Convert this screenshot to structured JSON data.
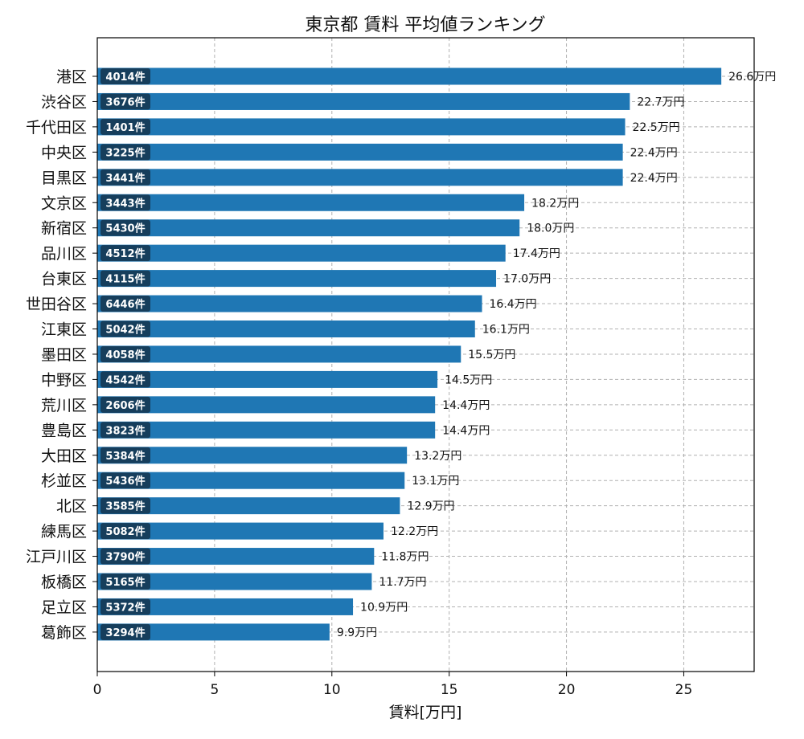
{
  "chart_data": {
    "type": "bar",
    "orientation": "horizontal",
    "title": "東京都 賃料 平均値ランキング",
    "xlabel": "賃料[万円]",
    "ylabel": "",
    "xlim": [
      0,
      28
    ],
    "xticks": [
      "0",
      "5",
      "10",
      "15",
      "20",
      "25"
    ],
    "grid": true,
    "bar_color": "#1f77b4",
    "count_badge_color": "#163e5c",
    "value_suffix": "万円",
    "count_suffix": "件",
    "categories": [
      "港区",
      "渋谷区",
      "千代田区",
      "中央区",
      "目黒区",
      "文京区",
      "新宿区",
      "品川区",
      "台東区",
      "世田谷区",
      "江東区",
      "墨田区",
      "中野区",
      "荒川区",
      "豊島区",
      "大田区",
      "杉並区",
      "北区",
      "練馬区",
      "江戸川区",
      "板橋区",
      "足立区",
      "葛飾区"
    ],
    "values": [
      26.6,
      22.7,
      22.5,
      22.4,
      22.4,
      18.2,
      18.0,
      17.4,
      17.0,
      16.4,
      16.1,
      15.5,
      14.5,
      14.4,
      14.4,
      13.2,
      13.1,
      12.9,
      12.2,
      11.8,
      11.7,
      10.9,
      9.9
    ],
    "value_labels": [
      "26.6万円",
      "22.7万円",
      "22.5万円",
      "22.4万円",
      "22.4万円",
      "18.2万円",
      "18.0万円",
      "17.4万円",
      "17.0万円",
      "16.4万円",
      "16.1万円",
      "15.5万円",
      "14.5万円",
      "14.4万円",
      "14.4万円",
      "13.2万円",
      "13.1万円",
      "12.9万円",
      "12.2万円",
      "11.8万円",
      "11.7万円",
      "10.9万円",
      "9.9万円"
    ],
    "counts": [
      "4014件",
      "3676件",
      "1401件",
      "3225件",
      "3441件",
      "3443件",
      "5430件",
      "4512件",
      "4115件",
      "6446件",
      "5042件",
      "4058件",
      "4542件",
      "2606件",
      "3823件",
      "5384件",
      "5436件",
      "3585件",
      "5082件",
      "3790件",
      "5165件",
      "5372件",
      "3294件"
    ]
  }
}
